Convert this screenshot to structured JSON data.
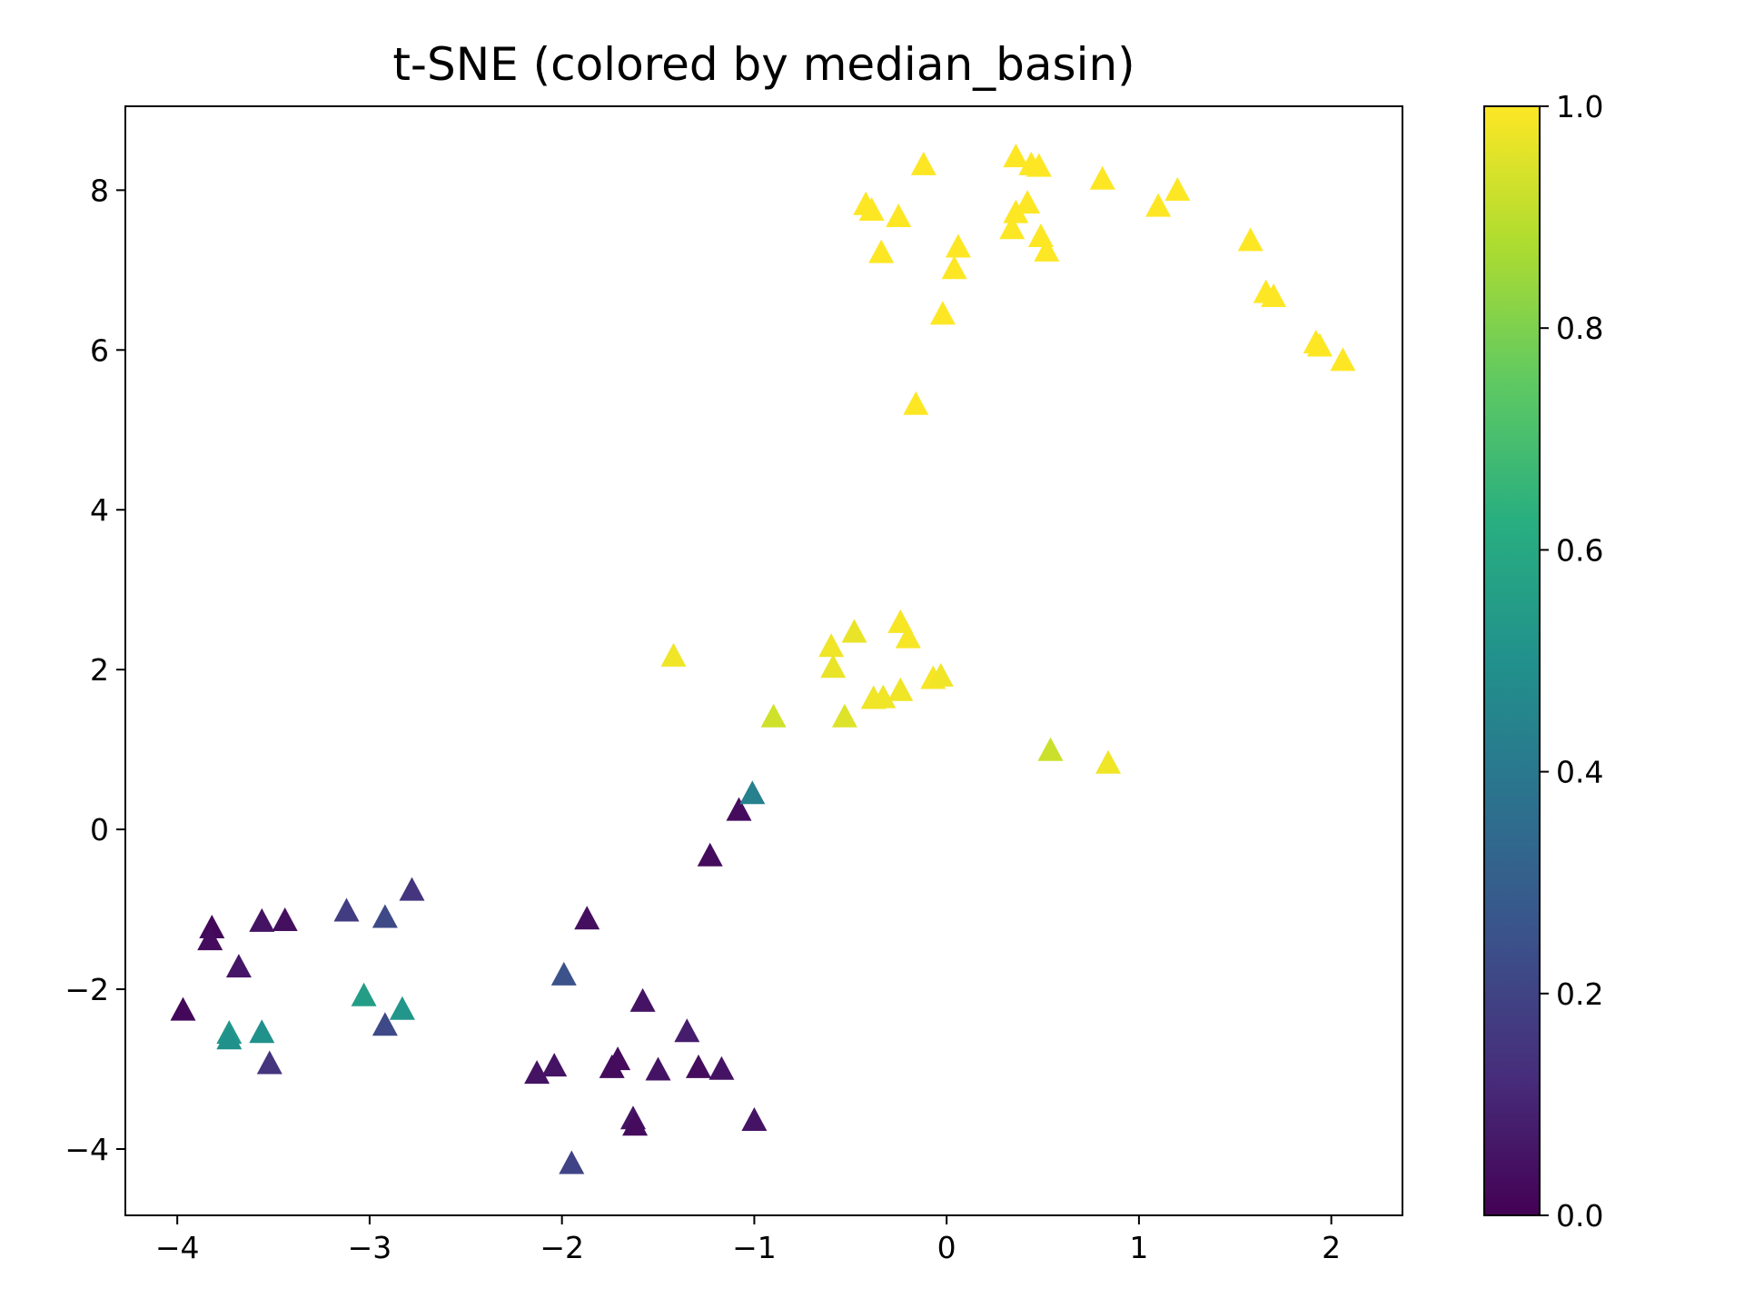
{
  "chart_data": {
    "type": "scatter",
    "title": "t-SNE (colored by median_basin)",
    "xlabel": "",
    "ylabel": "",
    "xlim": [
      -4.27,
      2.37
    ],
    "ylim": [
      -4.83,
      9.05
    ],
    "x_ticks": [
      -4,
      -3,
      -2,
      -1,
      0,
      1,
      2
    ],
    "x_tick_labels": [
      "−4",
      "−3",
      "−2",
      "−1",
      "0",
      "1",
      "2"
    ],
    "y_ticks": [
      -4,
      -2,
      0,
      2,
      4,
      6,
      8
    ],
    "y_tick_labels": [
      "−4",
      "−2",
      "0",
      "2",
      "4",
      "6",
      "8"
    ],
    "grid": false,
    "marker": "triangle",
    "colormap": "viridis",
    "colorbar": {
      "range": [
        0.0,
        1.0
      ],
      "ticks": [
        0.0,
        0.2,
        0.4,
        0.6,
        0.8,
        1.0
      ],
      "tick_labels": [
        "0.0",
        "0.2",
        "0.4",
        "0.6",
        "0.8",
        "1.0"
      ]
    },
    "points": [
      {
        "x": -3.97,
        "y": -2.28,
        "c": 0.02
      },
      {
        "x": -3.82,
        "y": -1.25,
        "c": 0.02
      },
      {
        "x": -3.83,
        "y": -1.4,
        "c": 0.03
      },
      {
        "x": -3.68,
        "y": -1.74,
        "c": 0.06
      },
      {
        "x": -3.73,
        "y": -2.57,
        "c": 0.52
      },
      {
        "x": -3.73,
        "y": -2.64,
        "c": 0.5
      },
      {
        "x": -3.56,
        "y": -1.17,
        "c": 0.05
      },
      {
        "x": -3.56,
        "y": -2.56,
        "c": 0.5
      },
      {
        "x": -3.52,
        "y": -2.95,
        "c": 0.15
      },
      {
        "x": -3.44,
        "y": -1.16,
        "c": 0.04
      },
      {
        "x": -3.12,
        "y": -1.04,
        "c": 0.18
      },
      {
        "x": -3.03,
        "y": -2.1,
        "c": 0.55
      },
      {
        "x": -2.92,
        "y": -1.12,
        "c": 0.22
      },
      {
        "x": -2.92,
        "y": -2.47,
        "c": 0.22
      },
      {
        "x": -2.83,
        "y": -2.27,
        "c": 0.52
      },
      {
        "x": -2.78,
        "y": -0.78,
        "c": 0.15
      },
      {
        "x": -2.13,
        "y": -3.07,
        "c": 0.05
      },
      {
        "x": -2.04,
        "y": -2.98,
        "c": 0.05
      },
      {
        "x": -1.99,
        "y": -1.84,
        "c": 0.25
      },
      {
        "x": -1.95,
        "y": -4.2,
        "c": 0.2
      },
      {
        "x": -1.87,
        "y": -1.14,
        "c": 0.04
      },
      {
        "x": -1.74,
        "y": -3.0,
        "c": 0.03
      },
      {
        "x": -1.71,
        "y": -2.9,
        "c": 0.03
      },
      {
        "x": -1.63,
        "y": -3.64,
        "c": 0.05
      },
      {
        "x": -1.62,
        "y": -3.72,
        "c": 0.03
      },
      {
        "x": -1.58,
        "y": -2.17,
        "c": 0.05
      },
      {
        "x": -1.5,
        "y": -3.03,
        "c": 0.05
      },
      {
        "x": -1.35,
        "y": -2.55,
        "c": 0.08
      },
      {
        "x": -1.29,
        "y": -3.0,
        "c": 0.03
      },
      {
        "x": -1.17,
        "y": -3.02,
        "c": 0.05
      },
      {
        "x": -1.23,
        "y": -0.35,
        "c": 0.03
      },
      {
        "x": -1.08,
        "y": 0.22,
        "c": 0.03
      },
      {
        "x": -1.0,
        "y": -3.66,
        "c": 0.05
      },
      {
        "x": -1.01,
        "y": 0.43,
        "c": 0.43
      },
      {
        "x": -1.42,
        "y": 2.15,
        "c": 0.98
      },
      {
        "x": -0.9,
        "y": 1.39,
        "c": 0.93
      },
      {
        "x": -0.6,
        "y": 2.27,
        "c": 0.98
      },
      {
        "x": -0.59,
        "y": 2.01,
        "c": 0.97
      },
      {
        "x": -0.53,
        "y": 1.39,
        "c": 0.95
      },
      {
        "x": -0.48,
        "y": 2.45,
        "c": 0.97
      },
      {
        "x": -0.38,
        "y": 1.62,
        "c": 0.98
      },
      {
        "x": -0.33,
        "y": 1.63,
        "c": 0.98
      },
      {
        "x": -0.24,
        "y": 1.72,
        "c": 0.98
      },
      {
        "x": -0.24,
        "y": 2.57,
        "c": 0.99
      },
      {
        "x": -0.2,
        "y": 2.38,
        "c": 0.99
      },
      {
        "x": -0.07,
        "y": 1.87,
        "c": 0.99
      },
      {
        "x": -0.03,
        "y": 1.9,
        "c": 0.98
      },
      {
        "x": 0.54,
        "y": 0.97,
        "c": 0.92
      },
      {
        "x": 0.84,
        "y": 0.81,
        "c": 0.98
      },
      {
        "x": -0.42,
        "y": 7.8,
        "c": 1.0
      },
      {
        "x": -0.39,
        "y": 7.73,
        "c": 1.0
      },
      {
        "x": -0.34,
        "y": 7.2,
        "c": 1.0
      },
      {
        "x": -0.25,
        "y": 7.65,
        "c": 1.0
      },
      {
        "x": -0.16,
        "y": 5.3,
        "c": 1.0
      },
      {
        "x": -0.12,
        "y": 8.3,
        "c": 1.0
      },
      {
        "x": -0.02,
        "y": 6.43,
        "c": 1.0
      },
      {
        "x": 0.04,
        "y": 7.0,
        "c": 1.0
      },
      {
        "x": 0.06,
        "y": 7.27,
        "c": 1.0
      },
      {
        "x": 0.34,
        "y": 7.5,
        "c": 1.0
      },
      {
        "x": 0.36,
        "y": 7.7,
        "c": 1.0
      },
      {
        "x": 0.36,
        "y": 8.4,
        "c": 1.0
      },
      {
        "x": 0.42,
        "y": 7.82,
        "c": 1.0
      },
      {
        "x": 0.44,
        "y": 8.3,
        "c": 1.0
      },
      {
        "x": 0.48,
        "y": 8.28,
        "c": 1.0
      },
      {
        "x": 0.49,
        "y": 7.4,
        "c": 1.0
      },
      {
        "x": 0.52,
        "y": 7.22,
        "c": 1.0
      },
      {
        "x": 0.81,
        "y": 8.12,
        "c": 1.0
      },
      {
        "x": 1.1,
        "y": 7.78,
        "c": 1.0
      },
      {
        "x": 1.2,
        "y": 7.98,
        "c": 1.0
      },
      {
        "x": 1.58,
        "y": 7.35,
        "c": 1.0
      },
      {
        "x": 1.66,
        "y": 6.7,
        "c": 1.0
      },
      {
        "x": 1.7,
        "y": 6.65,
        "c": 1.0
      },
      {
        "x": 1.92,
        "y": 6.07,
        "c": 1.0
      },
      {
        "x": 1.94,
        "y": 6.03,
        "c": 1.0
      },
      {
        "x": 2.06,
        "y": 5.85,
        "c": 1.0
      }
    ]
  }
}
